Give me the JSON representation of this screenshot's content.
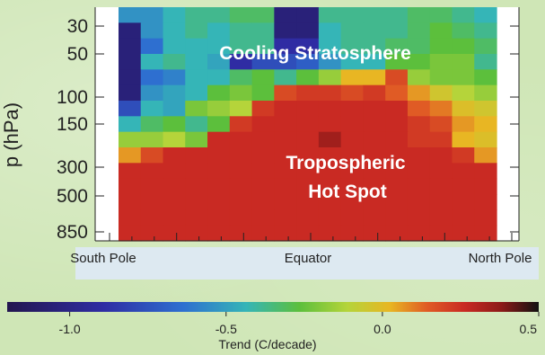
{
  "chart_data": {
    "type": "heatmap",
    "ylabel": "p (hPa)",
    "y_ticks": [
      "30",
      "50",
      "100",
      "150",
      "300",
      "500",
      "850"
    ],
    "x_categories": [
      "South Pole",
      "Equator",
      "North Pole"
    ],
    "annotations": [
      "Cooling Stratosphere",
      "Tropospheric",
      "Hot Spot"
    ],
    "colorbar": {
      "label": "Trend (C/decade)",
      "ticks": [
        "-1.0",
        "-0.5",
        "0.0",
        "0.5"
      ],
      "tick_values": [
        -1.0,
        -0.5,
        0.0,
        0.5
      ],
      "range": [
        -1.2,
        0.5
      ]
    },
    "grid_dims": {
      "rows": 15,
      "cols": 17
    },
    "values": [
      [
        -0.7,
        -0.7,
        -0.6,
        -0.55,
        -0.55,
        -0.5,
        -0.5,
        -1.1,
        -1.1,
        -0.55,
        -0.55,
        -0.55,
        -0.55,
        -0.5,
        -0.5,
        -0.55,
        -0.6
      ],
      [
        -1.1,
        -0.7,
        -0.6,
        -0.55,
        -0.6,
        -0.55,
        -0.55,
        -1.1,
        -1.1,
        -0.6,
        -0.55,
        -0.55,
        -0.55,
        -0.5,
        -0.45,
        -0.5,
        -0.55
      ],
      [
        -1.1,
        -0.8,
        -0.6,
        -0.6,
        -0.6,
        -0.55,
        -0.55,
        -1.0,
        -1.0,
        -0.6,
        -0.55,
        -0.55,
        -0.5,
        -0.5,
        -0.45,
        -0.45,
        -0.5
      ],
      [
        -1.1,
        -0.6,
        -0.55,
        -0.6,
        -0.65,
        -1.0,
        -0.9,
        -0.9,
        -0.85,
        -0.7,
        -0.6,
        -0.6,
        -0.45,
        -0.45,
        -0.4,
        -0.4,
        -0.55
      ],
      [
        -1.1,
        -0.8,
        -0.75,
        -0.6,
        -0.6,
        -0.5,
        -0.45,
        -0.55,
        -0.45,
        -0.35,
        -0.1,
        -0.1,
        0.1,
        -0.35,
        -0.4,
        -0.4,
        -0.45
      ],
      [
        -1.1,
        -0.7,
        -0.65,
        -0.6,
        -0.45,
        -0.4,
        -0.45,
        0.1,
        0.15,
        0.15,
        0.1,
        0.15,
        0.05,
        -0.05,
        -0.2,
        -0.3,
        -0.35
      ],
      [
        -0.9,
        -0.6,
        -0.65,
        -0.4,
        -0.35,
        -0.3,
        0.15,
        0.2,
        0.2,
        0.2,
        0.2,
        0.2,
        0.2,
        0.05,
        0.0,
        -0.15,
        -0.2
      ],
      [
        -0.6,
        -0.5,
        -0.45,
        -0.55,
        -0.45,
        0.15,
        0.2,
        0.2,
        0.2,
        0.2,
        0.2,
        0.2,
        0.2,
        0.15,
        0.1,
        -0.05,
        -0.1
      ],
      [
        -0.35,
        -0.35,
        -0.3,
        -0.4,
        0.2,
        0.2,
        0.2,
        0.2,
        0.2,
        0.3,
        0.2,
        0.2,
        0.2,
        0.15,
        0.15,
        -0.1,
        -0.15
      ],
      [
        -0.05,
        0.1,
        0.2,
        0.2,
        0.2,
        0.2,
        0.2,
        0.2,
        0.2,
        0.2,
        0.2,
        0.2,
        0.2,
        0.2,
        0.2,
        0.15,
        -0.05
      ],
      [
        0.2,
        0.2,
        0.2,
        0.2,
        0.2,
        0.2,
        0.2,
        0.2,
        0.2,
        0.2,
        0.2,
        0.2,
        0.2,
        0.2,
        0.2,
        0.2,
        0.2
      ],
      [
        0.2,
        0.2,
        0.2,
        0.2,
        0.2,
        0.2,
        0.2,
        0.2,
        0.2,
        0.2,
        0.2,
        0.2,
        0.2,
        0.2,
        0.2,
        0.2,
        0.2
      ],
      [
        0.2,
        0.2,
        0.2,
        0.2,
        0.2,
        0.2,
        0.2,
        0.2,
        0.2,
        0.2,
        0.2,
        0.2,
        0.2,
        0.2,
        0.2,
        0.2,
        0.2
      ],
      [
        0.2,
        0.2,
        0.2,
        0.2,
        0.2,
        0.2,
        0.2,
        0.2,
        0.2,
        0.2,
        0.2,
        0.2,
        0.2,
        0.2,
        0.2,
        0.2,
        0.2
      ],
      [
        0.2,
        0.2,
        0.2,
        0.2,
        0.2,
        0.2,
        0.2,
        0.2,
        0.2,
        0.2,
        0.2,
        0.2,
        0.2,
        0.2,
        0.2,
        0.2,
        0.2
      ]
    ]
  }
}
